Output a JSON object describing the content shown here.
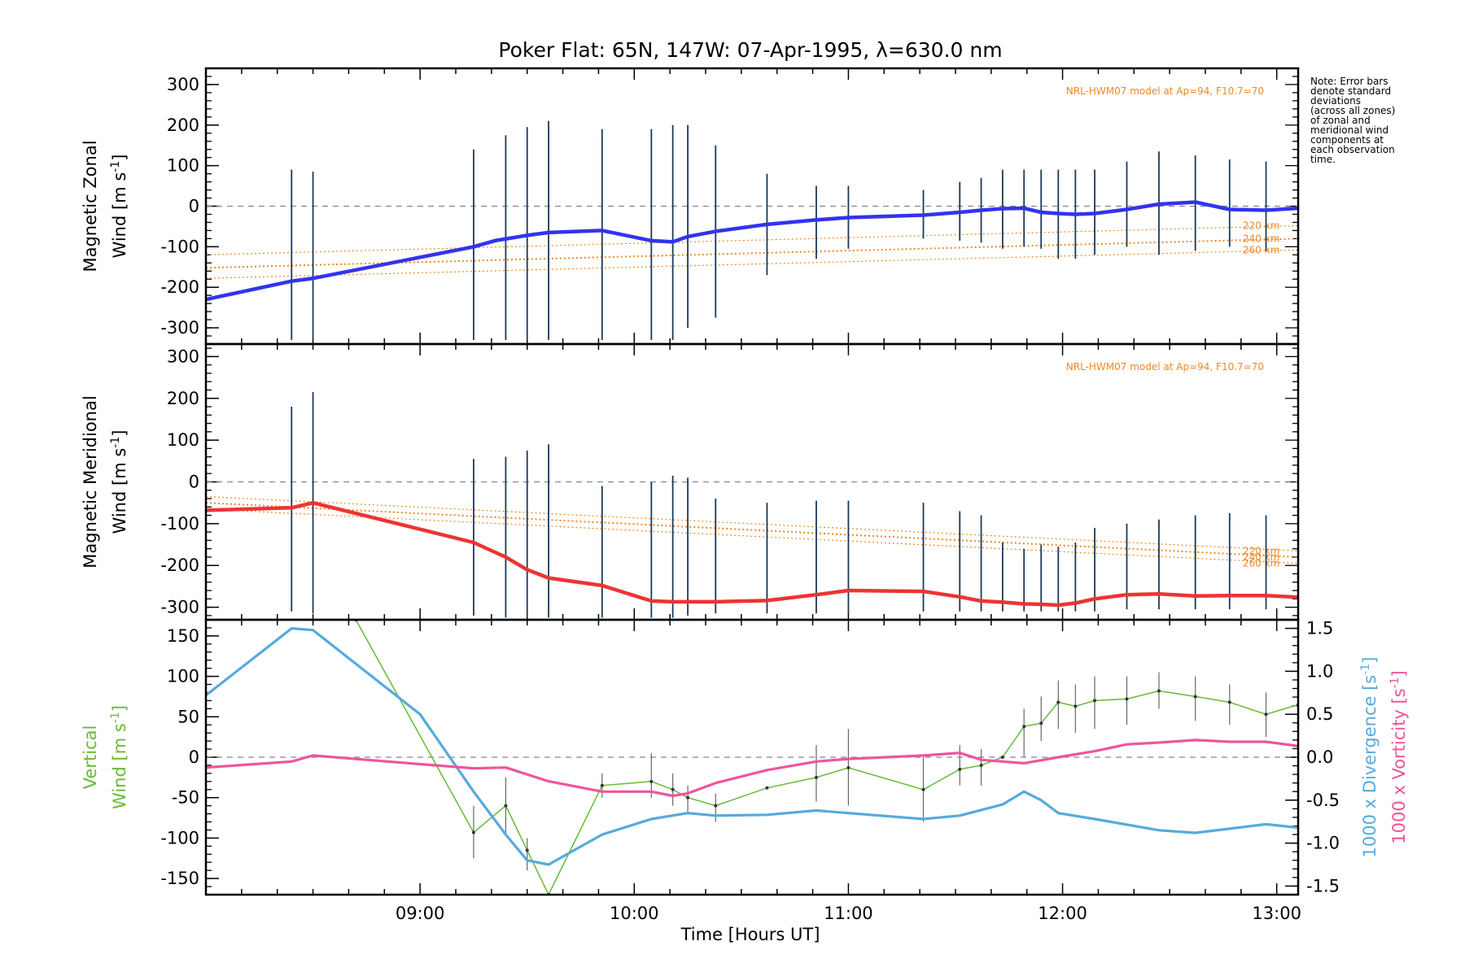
{
  "title": "Poker Flat: 65N, 147W: 07-Apr-1995, λ=630.0 nm",
  "note": [
    "Note: Error bars",
    "denote standard",
    "deviations",
    "(across all zones)",
    "of zonal and",
    "meridional wind",
    "components at",
    "each observation",
    "time."
  ],
  "colors": {
    "zonal": "#3333ee",
    "meridional": "#ee3333",
    "vertical": "#66bb33",
    "divergence": "#55aadd",
    "vorticity": "#ee5599",
    "model": "#ee8822",
    "errorbar": "#1a3a5a"
  },
  "chart_data": [
    {
      "type": "line",
      "panel": "zonal",
      "ylabel_1": "Magnetic Zonal",
      "ylabel_2": "Wind [m s",
      "ylabel_sup": "-1",
      "ylabel_end": "]",
      "ylim": [
        -340,
        340
      ],
      "yticks": [
        -300,
        -200,
        -100,
        0,
        100,
        200,
        300
      ],
      "xlim": [
        8.0,
        13.1
      ],
      "model_label": "NRL-HWM07 model at Ap=94, F10.7=70",
      "model_alt_labels": [
        "220 km",
        "240 km",
        "260 km"
      ],
      "series": [
        {
          "x": [
            8.0,
            8.4,
            8.5,
            9.25,
            9.35,
            9.5,
            9.6,
            9.85,
            10.08,
            10.18,
            10.25,
            10.38,
            10.62,
            10.85,
            11.0,
            11.35,
            11.52,
            11.62,
            11.72,
            11.82,
            11.9,
            11.98,
            12.06,
            12.15,
            12.3,
            12.45,
            12.62,
            12.78,
            12.95,
            13.1
          ],
          "y": [
            -230,
            -185,
            -178,
            -100,
            -85,
            -72,
            -65,
            -60,
            -85,
            -88,
            -75,
            -62,
            -45,
            -34,
            -28,
            -22,
            -15,
            -10,
            -6,
            -5,
            -15,
            -18,
            -20,
            -18,
            -8,
            5,
            10,
            -8,
            -10,
            -5
          ]
        }
      ],
      "model": [
        {
          "name": "220 km",
          "x": [
            8.0,
            13.1
          ],
          "y": [
            -120,
            -48
          ]
        },
        {
          "name": "240 km",
          "x": [
            8.0,
            13.1
          ],
          "y": [
            -152,
            -80
          ]
        },
        {
          "name": "260 km",
          "x": [
            8.0,
            13.1
          ],
          "y": [
            -178,
            -108
          ]
        }
      ],
      "obs_x": [
        8.4,
        8.5,
        9.25,
        9.4,
        9.5,
        9.6,
        9.85,
        10.08,
        10.18,
        10.25,
        10.38,
        10.62,
        10.85,
        11.0,
        11.35,
        11.52,
        11.62,
        11.72,
        11.82,
        11.9,
        11.98,
        12.06,
        12.15,
        12.3,
        12.45,
        12.62,
        12.78,
        12.95
      ],
      "obs_lo": [
        -330,
        -330,
        -330,
        -330,
        -330,
        -330,
        -330,
        -330,
        -330,
        -300,
        -275,
        -170,
        -130,
        -105,
        -80,
        -85,
        -90,
        -105,
        -100,
        -105,
        -130,
        -130,
        -120,
        -100,
        -120,
        -110,
        -100,
        -110
      ],
      "obs_hi": [
        90,
        85,
        140,
        175,
        195,
        210,
        190,
        190,
        200,
        200,
        150,
        80,
        50,
        50,
        40,
        60,
        70,
        90,
        90,
        90,
        90,
        90,
        90,
        110,
        135,
        125,
        115,
        110
      ]
    },
    {
      "type": "line",
      "panel": "meridional",
      "ylabel_1": "Magnetic Meridional",
      "ylabel_2": "Wind [m s",
      "ylabel_sup": "-1",
      "ylabel_end": "]",
      "ylim": [
        -330,
        330
      ],
      "yticks": [
        -300,
        -200,
        -100,
        0,
        100,
        200,
        300
      ],
      "xlim": [
        8.0,
        13.1
      ],
      "model_label": "NRL-HWM07 model at Ap=94, F10.7=70",
      "model_alt_labels": [
        "220 km",
        "240 km",
        "260 km"
      ],
      "series": [
        {
          "x": [
            8.0,
            8.4,
            8.5,
            9.25,
            9.4,
            9.5,
            9.6,
            9.85,
            10.08,
            10.18,
            10.25,
            10.38,
            10.62,
            10.85,
            11.0,
            11.35,
            11.52,
            11.62,
            11.72,
            11.82,
            11.9,
            11.98,
            12.06,
            12.15,
            12.3,
            12.45,
            12.62,
            12.78,
            12.95,
            13.1
          ],
          "y": [
            -68,
            -62,
            -50,
            -145,
            -180,
            -210,
            -230,
            -248,
            -285,
            -287,
            -287,
            -287,
            -284,
            -270,
            -260,
            -262,
            -275,
            -285,
            -288,
            -292,
            -293,
            -295,
            -290,
            -280,
            -270,
            -268,
            -273,
            -272,
            -272,
            -276
          ]
        }
      ],
      "model": [
        {
          "name": "220 km",
          "x": [
            8.0,
            13.1
          ],
          "y": [
            -35,
            -165
          ]
        },
        {
          "name": "240 km",
          "x": [
            8.0,
            13.1
          ],
          "y": [
            -50,
            -180
          ]
        },
        {
          "name": "260 km",
          "x": [
            8.0,
            13.1
          ],
          "y": [
            -65,
            -195
          ]
        }
      ],
      "obs_x": [
        8.4,
        8.5,
        9.25,
        9.4,
        9.5,
        9.6,
        9.85,
        10.08,
        10.18,
        10.25,
        10.38,
        10.62,
        10.85,
        11.0,
        11.35,
        11.52,
        11.62,
        11.72,
        11.82,
        11.9,
        11.98,
        12.06,
        12.15,
        12.3,
        12.45,
        12.62,
        12.78,
        12.95
      ],
      "obs_lo": [
        -310,
        -315,
        -320,
        -325,
        -325,
        -325,
        -325,
        -325,
        -325,
        -320,
        -315,
        -315,
        -315,
        -315,
        -310,
        -310,
        -310,
        -310,
        -310,
        -310,
        -310,
        -310,
        -310,
        -305,
        -305,
        -305,
        -305,
        -305
      ],
      "obs_hi": [
        180,
        215,
        55,
        60,
        75,
        90,
        -10,
        0,
        15,
        10,
        -40,
        -50,
        -45,
        -45,
        -50,
        -70,
        -80,
        -145,
        -160,
        -150,
        -155,
        -145,
        -110,
        -100,
        -90,
        -80,
        -75,
        -80
      ]
    },
    {
      "type": "line",
      "panel": "vertical",
      "ylabel_1": "Vertical",
      "ylabel_2": "Wind [m s",
      "ylabel_sup": "-1",
      "ylabel_end": "]",
      "ylim": [
        -170,
        170
      ],
      "yticks": [
        -150,
        -100,
        -50,
        0,
        50,
        100,
        150
      ],
      "y2lim": [
        -1.6,
        1.6
      ],
      "y2ticks": [
        -1.5,
        -1.0,
        -0.5,
        0.0,
        0.5,
        1.0,
        1.5
      ],
      "y2label_div": "1000 x Divergence [s",
      "y2label_vort": "1000 x Vorticity [s",
      "y2label_sup": "-1",
      "y2label_end": "]",
      "xlim": [
        8.0,
        13.1
      ],
      "xticks": [
        9,
        10,
        11,
        12,
        13
      ],
      "xticklabels": [
        "09:00",
        "10:00",
        "11:00",
        "12:00",
        "13:00"
      ],
      "xlabel": "Time [Hours UT]",
      "series": [
        {
          "name": "Vertical",
          "axis": "left",
          "x": [
            8.7,
            9.25,
            9.4,
            9.5,
            9.6,
            9.85,
            10.08,
            10.18,
            10.25,
            10.38,
            10.62,
            10.85,
            11.0,
            11.35,
            11.52,
            11.62,
            11.72,
            11.82,
            11.9,
            11.98,
            12.06,
            12.15,
            12.3,
            12.45,
            12.62,
            12.78,
            12.95,
            13.1
          ],
          "y": [
            170,
            -93,
            -60,
            -115,
            -170,
            -35,
            -30,
            -40,
            -50,
            -60,
            -38,
            -25,
            -13,
            -40,
            -15,
            -10,
            0,
            38,
            42,
            68,
            63,
            70,
            72,
            82,
            75,
            68,
            53,
            65
          ]
        },
        {
          "name": "1000 x Divergence",
          "axis": "right",
          "x": [
            8.0,
            8.4,
            8.5,
            9.0,
            9.25,
            9.4,
            9.5,
            9.6,
            9.85,
            10.08,
            10.25,
            10.38,
            10.62,
            10.85,
            11.0,
            11.35,
            11.52,
            11.72,
            11.82,
            11.9,
            11.98,
            12.15,
            12.45,
            12.62,
            12.95,
            13.1
          ],
          "y": [
            0.72,
            1.5,
            1.48,
            0.5,
            -0.4,
            -0.9,
            -1.2,
            -1.25,
            -0.9,
            -0.72,
            -0.65,
            -0.68,
            -0.67,
            -0.62,
            -0.65,
            -0.72,
            -0.68,
            -0.55,
            -0.4,
            -0.5,
            -0.65,
            -0.72,
            -0.85,
            -0.88,
            -0.78,
            -0.82
          ]
        },
        {
          "name": "1000 x Vorticity",
          "axis": "right",
          "x": [
            8.0,
            8.4,
            8.5,
            9.0,
            9.25,
            9.4,
            9.5,
            9.6,
            9.85,
            10.08,
            10.18,
            10.25,
            10.38,
            10.62,
            10.85,
            11.0,
            11.35,
            11.52,
            11.62,
            11.72,
            11.82,
            11.98,
            12.15,
            12.3,
            12.45,
            12.62,
            12.78,
            12.95,
            13.1
          ],
          "y": [
            -0.12,
            -0.05,
            0.02,
            -0.08,
            -0.13,
            -0.12,
            -0.2,
            -0.28,
            -0.4,
            -0.4,
            -0.45,
            -0.42,
            -0.3,
            -0.15,
            -0.05,
            -0.02,
            0.02,
            0.05,
            -0.03,
            -0.05,
            -0.07,
            0.0,
            0.07,
            0.15,
            0.17,
            0.2,
            0.18,
            0.18,
            0.13
          ]
        }
      ],
      "vert_err_x": [
        9.25,
        9.4,
        9.5,
        9.85,
        10.08,
        10.18,
        10.25,
        10.38,
        10.85,
        11.0,
        11.35,
        11.52,
        11.62,
        11.82,
        11.9,
        11.98,
        12.06,
        12.15,
        12.3,
        12.45,
        12.62,
        12.78,
        12.95
      ],
      "vert_err_lo": [
        -125,
        -95,
        -140,
        -50,
        -50,
        -60,
        -70,
        -80,
        -55,
        -60,
        -80,
        -35,
        -35,
        0,
        20,
        35,
        30,
        35,
        40,
        60,
        45,
        40,
        25
      ],
      "vert_err_hi": [
        -60,
        -25,
        -100,
        -20,
        5,
        -20,
        -35,
        -45,
        15,
        35,
        0,
        15,
        10,
        60,
        75,
        95,
        90,
        100,
        100,
        105,
        100,
        90,
        80
      ]
    }
  ]
}
